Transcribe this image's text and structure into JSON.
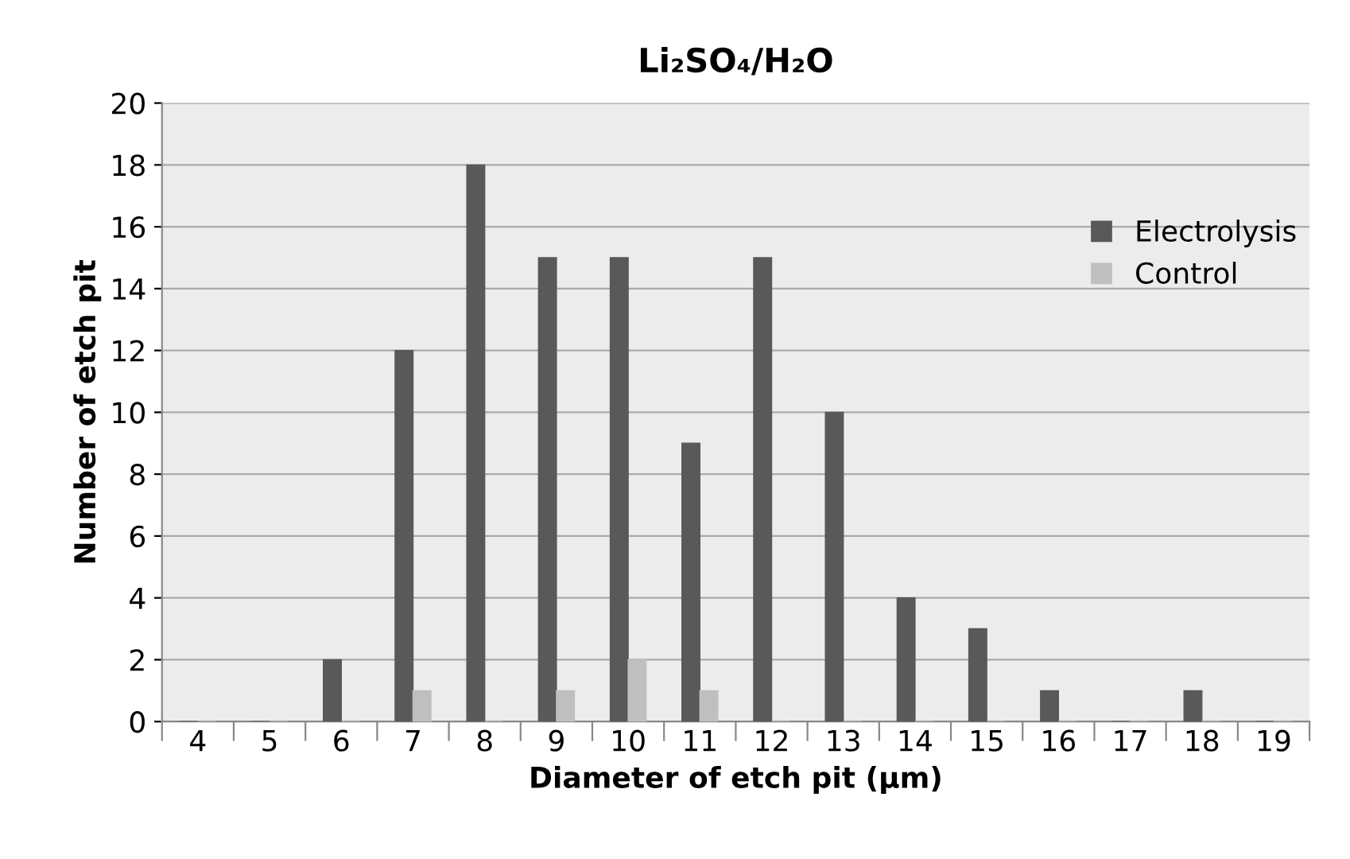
{
  "chart_data": {
    "type": "bar",
    "title": "Li₂SO₄/H₂O",
    "xlabel": "Diameter of etch pit (µm)",
    "ylabel": "Number of etch pit",
    "categories": [
      "4",
      "5",
      "6",
      "7",
      "8",
      "9",
      "10",
      "11",
      "12",
      "13",
      "14",
      "15",
      "16",
      "17",
      "18",
      "19"
    ],
    "series": [
      {
        "name": "Electrolysis",
        "color": "#595959",
        "values": [
          0,
          0,
          2,
          12,
          18,
          15,
          15,
          9,
          15,
          10,
          4,
          3,
          1,
          0,
          1,
          0
        ]
      },
      {
        "name": "Control",
        "color": "#bfbfbf",
        "values": [
          0,
          0,
          0,
          1,
          0,
          1,
          2,
          1,
          0,
          0,
          0,
          0,
          0,
          0,
          0,
          0
        ]
      }
    ],
    "ylim": [
      0,
      20
    ],
    "yticks": [
      0,
      2,
      4,
      6,
      8,
      10,
      12,
      14,
      16,
      18,
      20
    ],
    "grid": "y",
    "legend": "top right"
  }
}
